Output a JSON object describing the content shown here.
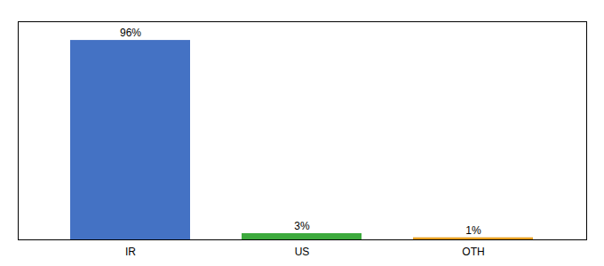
{
  "chart_data": {
    "type": "bar",
    "categories": [
      "IR",
      "US",
      "OTH"
    ],
    "values": [
      96,
      3,
      1
    ],
    "value_labels": [
      "96%",
      "3%",
      "1%"
    ],
    "colors": [
      "#4472C4",
      "#3DAA3D",
      "#E8A020"
    ],
    "ylim": [
      0,
      105
    ],
    "data_labels": true,
    "tick_labels": "x",
    "grid": false
  }
}
